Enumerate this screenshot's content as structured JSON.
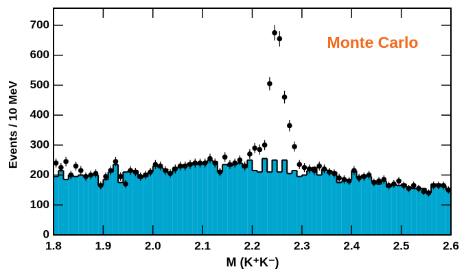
{
  "chart_data": {
    "type": "histogram",
    "annotation": "Monte Carlo",
    "xlabel": "M (K⁺K⁻)",
    "ylabel": "Events / 10 MeV",
    "color": "#00a6cf",
    "point_color": "#000000",
    "annotation_color": "#f26b1d",
    "bins": [
      1.8,
      1.81,
      1.82,
      1.83,
      1.84,
      1.85,
      1.86,
      1.87,
      1.88,
      1.89,
      1.9,
      1.91,
      1.92,
      1.93,
      1.94,
      1.95,
      1.96,
      1.97,
      1.98,
      1.99,
      2.0,
      2.01,
      2.02,
      2.03,
      2.04,
      2.05,
      2.06,
      2.07,
      2.08,
      2.09,
      2.1,
      2.11,
      2.12,
      2.13,
      2.14,
      2.15,
      2.16,
      2.17,
      2.18,
      2.19,
      2.2,
      2.21,
      2.22,
      2.23,
      2.24,
      2.25,
      2.26,
      2.27,
      2.28,
      2.29,
      2.3,
      2.31,
      2.32,
      2.33,
      2.34,
      2.35,
      2.36,
      2.37,
      2.38,
      2.39,
      2.4,
      2.41,
      2.42,
      2.43,
      2.44,
      2.45,
      2.46,
      2.47,
      2.48,
      2.49,
      2.5,
      2.51,
      2.52,
      2.53,
      2.54,
      2.55,
      2.56,
      2.57,
      2.58,
      2.59,
      2.6
    ],
    "values": [
      195,
      215,
      185,
      200,
      195,
      200,
      195,
      200,
      200,
      165,
      185,
      210,
      235,
      175,
      210,
      215,
      215,
      190,
      195,
      210,
      230,
      225,
      220,
      205,
      225,
      225,
      235,
      240,
      235,
      235,
      240,
      250,
      245,
      210,
      235,
      230,
      235,
      240,
      225,
      250,
      215,
      210,
      255,
      210,
      250,
      210,
      250,
      205,
      215,
      195,
      200,
      215,
      225,
      200,
      220,
      215,
      210,
      175,
      180,
      185,
      215,
      190,
      200,
      195,
      180,
      170,
      180,
      160,
      170,
      165,
      170,
      160,
      155,
      155,
      155,
      140,
      170,
      170,
      165,
      150
    ],
    "points": {
      "values": [
        240,
        225,
        245,
        200,
        230,
        215,
        195,
        200,
        205,
        165,
        195,
        215,
        245,
        195,
        170,
        215,
        210,
        195,
        200,
        210,
        235,
        230,
        215,
        205,
        220,
        230,
        230,
        235,
        240,
        240,
        240,
        255,
        240,
        210,
        260,
        235,
        240,
        250,
        230,
        270,
        290,
        285,
        300,
        505,
        675,
        655,
        460,
        365,
        295,
        235,
        225,
        220,
        215,
        230,
        220,
        210,
        205,
        190,
        185,
        180,
        215,
        190,
        195,
        200,
        175,
        180,
        185,
        165,
        170,
        180,
        165,
        155,
        165,
        155,
        145,
        140,
        165,
        165,
        165,
        150
      ],
      "errors": [
        15,
        15,
        16,
        14,
        15,
        15,
        14,
        14,
        14,
        13,
        14,
        15,
        16,
        14,
        13,
        15,
        14,
        14,
        14,
        14,
        15,
        15,
        15,
        14,
        15,
        15,
        15,
        15,
        15,
        15,
        15,
        16,
        15,
        14,
        16,
        15,
        15,
        16,
        15,
        16,
        17,
        17,
        17,
        22,
        26,
        26,
        21,
        19,
        17,
        15,
        15,
        15,
        15,
        15,
        15,
        14,
        14,
        14,
        14,
        13,
        15,
        14,
        14,
        14,
        13,
        13,
        14,
        13,
        13,
        13,
        13,
        12,
        13,
        12,
        12,
        12,
        13,
        13,
        13,
        12
      ]
    },
    "xlim": [
      1.8,
      2.6
    ],
    "xticks": [
      1.8,
      1.9,
      {
        "value": 2,
        "label": "2.0"
      },
      2.1,
      2.2,
      2.3,
      2.4,
      2.5,
      2.6
    ],
    "ylim": [
      0,
      757
    ],
    "yticks": [
      0,
      100,
      200,
      300,
      400,
      500,
      600,
      700
    ]
  }
}
